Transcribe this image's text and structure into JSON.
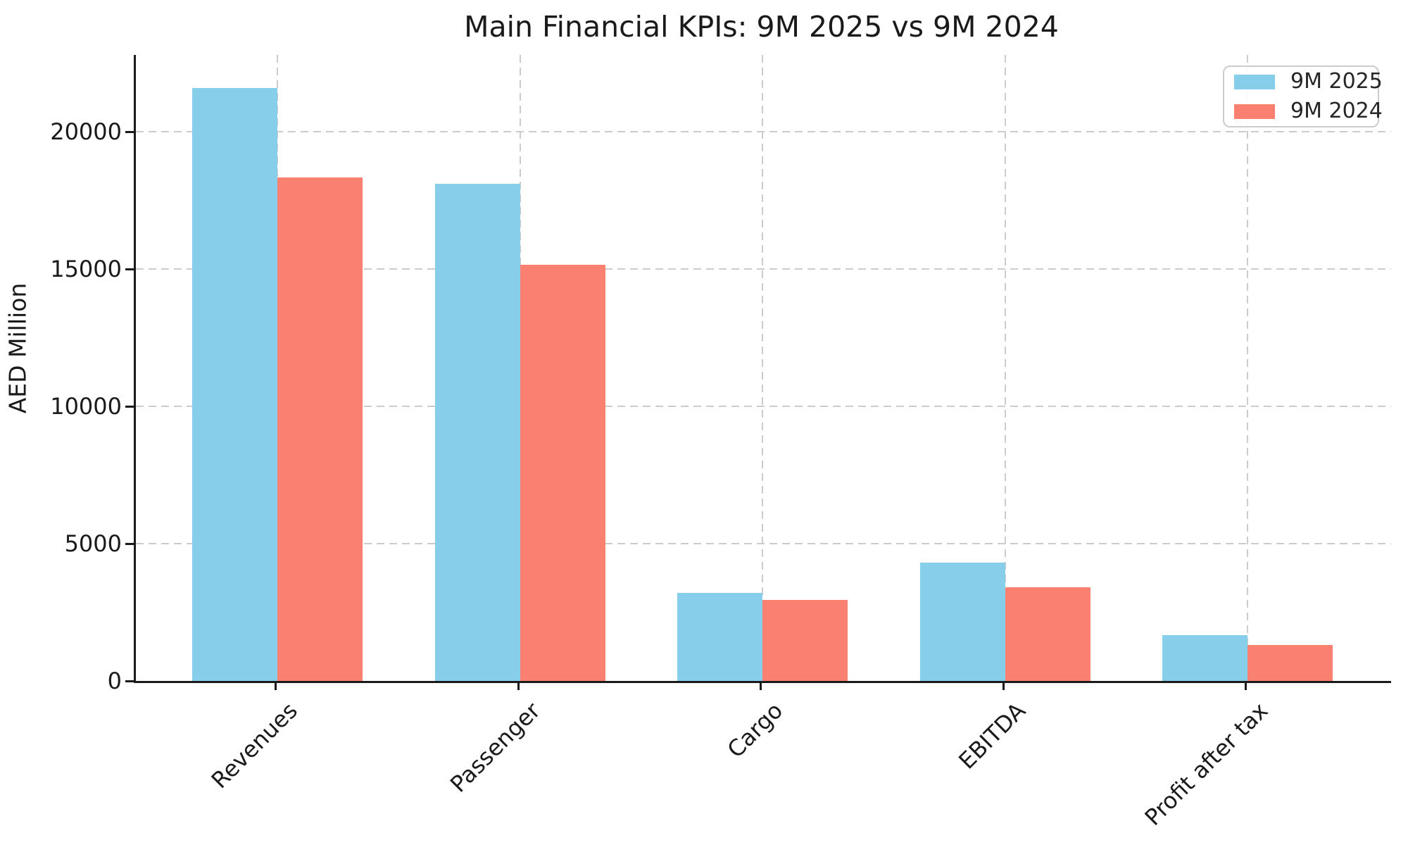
{
  "title": "Main Financial KPIs: 9M 2025 vs 9M 2024",
  "ylabel": "AED Million",
  "legend": {
    "position": "upper right"
  },
  "chart_data": {
    "type": "bar",
    "title": "Main Financial KPIs: 9M 2025 vs 9M 2024",
    "xlabel": "",
    "ylabel": "AED Million",
    "categories": [
      "Revenues",
      "Passenger",
      "Cargo",
      "EBITDA",
      "Profit after tax"
    ],
    "series": [
      {
        "name": "9M 2025",
        "color": "#87CEEB",
        "values": [
          21600,
          18100,
          3200,
          4300,
          1680
        ]
      },
      {
        "name": "9M 2024",
        "color": "#FA8072",
        "values": [
          18350,
          15150,
          2950,
          3400,
          1320
        ]
      }
    ],
    "yticks": [
      0,
      5000,
      10000,
      15000,
      20000
    ],
    "ylim": [
      0,
      22800
    ],
    "grid": true,
    "grid_style": "dashed",
    "legend_position": "upper right",
    "bar_width_ratio": 0.35,
    "x_tick_label_rotation": 45
  }
}
